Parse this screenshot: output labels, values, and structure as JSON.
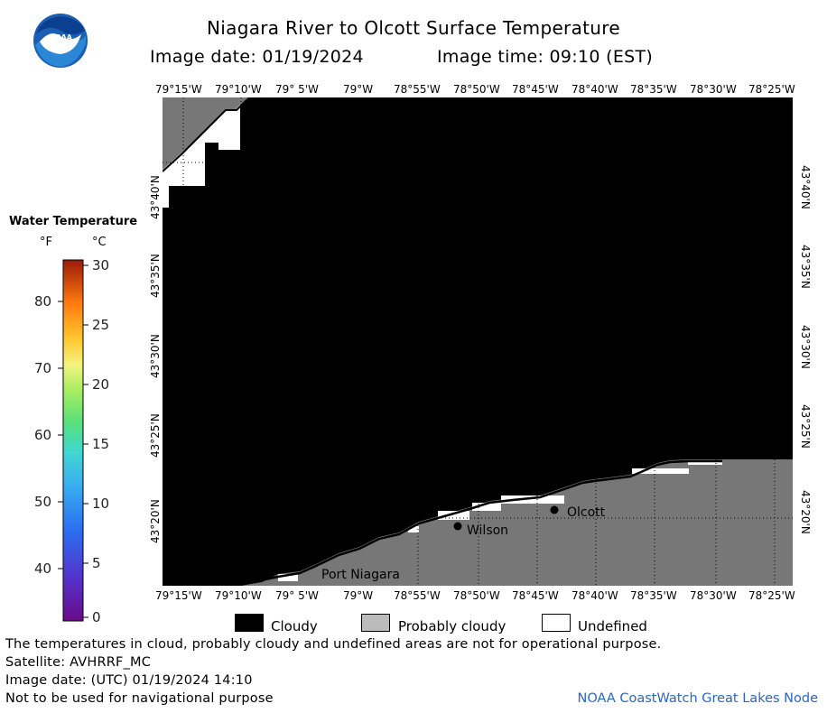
{
  "header": {
    "logo_text": "NOAA",
    "title": "Niagara River to Olcott Surface Temperature",
    "image_date_label": "Image date: 01/19/2024",
    "image_time_label": "Image time: 09:10 (EST)"
  },
  "map": {
    "longitude_ticks": [
      "79°15'W",
      "79°10'W",
      "79° 5'W",
      "79°W",
      "78°55'W",
      "78°50'W",
      "78°45'W",
      "78°40'W",
      "78°35'W",
      "78°30'W",
      "78°25'W"
    ],
    "latitude_ticks": [
      "43°40'N",
      "43°35'N",
      "43°30'N",
      "43°25'N",
      "43°20'N"
    ],
    "places": [
      {
        "name": "Wilson"
      },
      {
        "name": "Olcott"
      },
      {
        "name": "Port Niagara"
      }
    ],
    "colors": {
      "cloudy": "#000000",
      "probably_cloudy": "#777777",
      "undefined": "#ffffff"
    }
  },
  "legend": {
    "title": "Water Temperature",
    "unit_f": "°F",
    "unit_c": "°C",
    "fahrenheit_labels": [
      "80",
      "70",
      "60",
      "50",
      "40"
    ],
    "celsius_labels": [
      "30",
      "25",
      "20",
      "15",
      "10",
      "5",
      "0"
    ]
  },
  "key": {
    "cloudy": "Cloudy",
    "probably_cloudy": "Probably cloudy",
    "undefined": "Undefined"
  },
  "footer": {
    "note": "The temperatures in cloud, probably cloudy and undefined areas are not for operational purpose.",
    "satellite": "Satellite: AVHRRF_MC",
    "utc_date": "Image date: (UTC) 01/19/2024  14:10",
    "nav_warning": "Not to be used for navigational purpose",
    "credit": "NOAA CoastWatch Great Lakes Node"
  }
}
